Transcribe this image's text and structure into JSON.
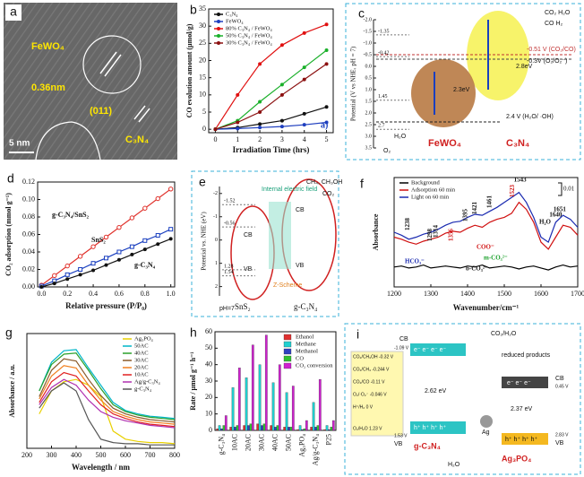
{
  "chart_data": [
    {
      "panel": "b",
      "type": "line",
      "x": [
        0,
        1,
        2,
        3,
        4,
        5
      ],
      "xlim": [
        -0.3,
        5.3
      ],
      "xticks": [
        0,
        1,
        2,
        3,
        4,
        5
      ],
      "ylim": [
        -1,
        35
      ],
      "yticks": [
        0,
        5,
        10,
        15,
        20,
        25,
        30,
        35
      ],
      "xlabel": "Irradiation Time (hrs)",
      "ylabel": "CO evolution amount (μmol/g)",
      "annotation": "a)",
      "legend": "upper left",
      "grid": false,
      "series": [
        {
          "name": "C₃N₄",
          "color": "#111111",
          "marker": "circle",
          "values": [
            0,
            0.5,
            1.5,
            2.5,
            4.5,
            6.5
          ]
        },
        {
          "name": "FeWO₄",
          "color": "#1f3fbf",
          "marker": "circle",
          "values": [
            0,
            0.2,
            0.5,
            0.8,
            1.3,
            2
          ]
        },
        {
          "name": "80% C₃N₄ / FeWO₄",
          "color": "#e01010",
          "marker": "circle",
          "values": [
            0,
            10,
            19,
            24.5,
            28,
            30.5
          ]
        },
        {
          "name": "50% C₃N₄ / FeWO₄",
          "color": "#1ab02a",
          "marker": "circle",
          "values": [
            0,
            2.5,
            8,
            13,
            18,
            23
          ]
        },
        {
          "name": "30% C₃N₄ / FeWO₄",
          "color": "#8b1010",
          "marker": "circle",
          "values": [
            0,
            2,
            5,
            10,
            14.5,
            19
          ]
        }
      ]
    },
    {
      "panel": "d",
      "type": "line",
      "x": [
        0,
        0.1,
        0.2,
        0.3,
        0.4,
        0.5,
        0.6,
        0.7,
        0.8,
        0.9,
        1
      ],
      "xlim": [
        -0.03,
        1.03
      ],
      "xticks": [
        {
          "value": 0,
          "label": "0.0"
        },
        0.2,
        0.4,
        0.6,
        0.8,
        {
          "value": 1,
          "label": "1.0"
        }
      ],
      "ylim": [
        0,
        0.12
      ],
      "yticks": [
        {
          "value": 0,
          "label": "0.00"
        },
        0.02,
        0.04,
        0.06,
        0.08,
        {
          "value": 0.1,
          "label": "0.10"
        },
        0.12
      ],
      "xlabel": "Relative pressure (P/P₀)",
      "ylabel": "CO₂ adsorption (mmol g⁻¹)",
      "legend": "inline",
      "grid": false,
      "series": [
        {
          "name": "g-C₃N₄/SnS₂",
          "color": "#e0302a",
          "marker": "open-circle",
          "values": [
            0.002,
            0.013,
            0.024,
            0.035,
            0.046,
            0.057,
            0.068,
            0.079,
            0.09,
            0.101,
            0.112
          ]
        },
        {
          "name": "SnS₂",
          "color": "#1a3fbf",
          "marker": "open-square",
          "values": [
            0.001,
            0.007,
            0.014,
            0.02,
            0.027,
            0.033,
            0.04,
            0.046,
            0.053,
            0.059,
            0.066
          ]
        },
        {
          "name": "g-C₃N₄",
          "color": "#111111",
          "marker": "circle",
          "values": [
            0,
            0.004,
            0.009,
            0.014,
            0.019,
            0.025,
            0.031,
            0.037,
            0.043,
            0.049,
            0.055
          ]
        }
      ]
    },
    {
      "panel": "f",
      "type": "line",
      "x": [
        1200,
        1220,
        1240,
        1260,
        1280,
        1300,
        1320,
        1340,
        1360,
        1380,
        1400,
        1420,
        1440,
        1460,
        1480,
        1500,
        1520,
        1540,
        1560,
        1580,
        1600,
        1620,
        1640,
        1660,
        1680,
        1700
      ],
      "xlim": [
        1200,
        1700
      ],
      "xticks": [
        1200,
        1300,
        1400,
        1500,
        1600,
        1700
      ],
      "ylim": [
        0,
        11
      ],
      "xlabel": "Wavenumber/cm⁻¹",
      "ylabel": "Absorbance",
      "legend": "upper left",
      "grid": false,
      "scale_label": "0.01",
      "peaks": [
        1238,
        1298,
        1314,
        1356,
        1395,
        1421,
        1461,
        1523,
        1543,
        1640,
        1651
      ],
      "peak_colors": [
        "#111111",
        "#111111",
        "#111111",
        "#d01010",
        "#111111",
        "#111111",
        "#111111",
        "#d01010",
        "#111111",
        "#111111",
        "#111111"
      ],
      "annotations": [
        "HCO₃⁻",
        "COO⁻",
        "m-CO₃²⁻",
        "b-CO₃²⁻",
        "H₂O"
      ],
      "series": [
        {
          "name": "Background",
          "color": "#000000",
          "marker": "none",
          "values": [
            2.0,
            2.1,
            1.9,
            2.0,
            2.2,
            1.9,
            2.0,
            2.1,
            2.0,
            1.9,
            2.1,
            2.0,
            2.2,
            1.9,
            2.0,
            2.1,
            2.0,
            1.8,
            2.0,
            2.1,
            1.9,
            1.7,
            2.0,
            2.2,
            2.0,
            2.1
          ]
        },
        {
          "name": "Adsorption 60 min",
          "color": "#d01010",
          "marker": "none",
          "values": [
            5.0,
            4.8,
            4.5,
            4.3,
            4.6,
            4.8,
            5.0,
            5.4,
            5.6,
            5.5,
            5.9,
            6.2,
            6.0,
            6.5,
            6.8,
            7.0,
            7.4,
            8.5,
            7.8,
            6.5,
            4.5,
            3.8,
            5.0,
            6.2,
            6.0,
            5.2
          ]
        },
        {
          "name": "Light on 60 min",
          "color": "#1a2ab0",
          "marker": "none",
          "values": [
            5.5,
            5.2,
            4.8,
            5.0,
            5.3,
            5.5,
            5.8,
            6.2,
            6.5,
            6.6,
            7.0,
            7.3,
            7.2,
            7.6,
            8.0,
            8.5,
            9.0,
            9.5,
            8.5,
            7.0,
            5.0,
            4.5,
            6.5,
            7.2,
            6.8,
            6.0
          ]
        }
      ]
    },
    {
      "panel": "g",
      "type": "line",
      "x": [
        250,
        300,
        350,
        400,
        450,
        500,
        550,
        600,
        650,
        700,
        750,
        800
      ],
      "xlim": [
        200,
        800
      ],
      "xticks": [
        200,
        300,
        400,
        500,
        600,
        700,
        800
      ],
      "ylim": [
        0,
        10
      ],
      "xlabel": "Wavelength / nm",
      "ylabel": "Absorbance / a.u.",
      "legend": "upper right",
      "grid": false,
      "series": [
        {
          "name": "Ag₃PO₄",
          "color": "#e8d000",
          "marker": "none",
          "values": [
            3,
            5,
            5.8,
            6,
            5.5,
            4.5,
            1.5,
            0.8,
            0.6,
            0.5,
            0.5,
            0.4
          ]
        },
        {
          "name": "50AC",
          "color": "#00b5c8",
          "marker": "none",
          "values": [
            5,
            7.5,
            8.5,
            8.6,
            7,
            5.5,
            4,
            3.3,
            3,
            2.8,
            2.7,
            2.6
          ]
        },
        {
          "name": "40AC",
          "color": "#2aa02a",
          "marker": "none",
          "values": [
            5,
            7.3,
            8.2,
            8.3,
            6.8,
            5.2,
            3.8,
            3.2,
            2.9,
            2.7,
            2.6,
            2.5
          ]
        },
        {
          "name": "30AC",
          "color": "#8a5a2a",
          "marker": "none",
          "values": [
            4.5,
            6.8,
            7.8,
            7.6,
            6,
            4.6,
            3.5,
            3,
            2.7,
            2.5,
            2.4,
            2.3
          ]
        },
        {
          "name": "20AC",
          "color": "#f08020",
          "marker": "none",
          "values": [
            4.3,
            6.3,
            7.2,
            7.0,
            5.5,
            4.2,
            3.2,
            2.8,
            2.5,
            2.3,
            2.2,
            2.1
          ]
        },
        {
          "name": "10AC",
          "color": "#e02020",
          "marker": "none",
          "values": [
            4,
            5.8,
            6.6,
            6.3,
            5,
            3.8,
            3,
            2.6,
            2.3,
            2.1,
            2,
            1.9
          ]
        },
        {
          "name": "Ag/g-C₃N₄",
          "color": "#b030b0",
          "marker": "none",
          "values": [
            3.8,
            5.3,
            6,
            5.5,
            4.2,
            3.2,
            2.7,
            2.4,
            2.2,
            2,
            1.9,
            1.8
          ]
        },
        {
          "name": "g-C₃N₄",
          "color": "#555555",
          "marker": "none",
          "values": [
            3.5,
            5,
            5.7,
            5,
            2.5,
            0.8,
            0.5,
            0.4,
            0.4,
            0.3,
            0.3,
            0.3
          ]
        }
      ]
    },
    {
      "panel": "h",
      "type": "bar",
      "categories": [
        "g-C₃N₄",
        "10AC",
        "20AC",
        "30AC",
        "40AC",
        "50AC",
        "Ag₃PO₄",
        "Ag/g-C₃N₄",
        "P25"
      ],
      "ylim": [
        0,
        60
      ],
      "yticks": [
        0,
        10,
        20,
        30,
        40,
        50,
        60
      ],
      "ylabel": "Rate / μmol g⁻¹ h⁻¹",
      "legend": "upper right",
      "grid": false,
      "series": [
        {
          "name": "Ethanol",
          "color": "#e03030",
          "values": [
            1,
            2,
            3,
            4,
            3,
            2,
            0.5,
            2,
            0.5
          ]
        },
        {
          "name": "Methane",
          "color": "#20d0d0",
          "values": [
            3,
            26,
            32,
            40,
            29,
            23,
            3,
            17,
            3
          ]
        },
        {
          "name": "Methanol",
          "color": "#3040c0",
          "values": [
            1,
            2,
            3,
            3,
            2,
            2,
            0.5,
            2,
            0.5
          ]
        },
        {
          "name": "CO",
          "color": "#30c030",
          "values": [
            3,
            3,
            4,
            4,
            3,
            2,
            1,
            3,
            2
          ]
        },
        {
          "name": "CO₂ conversion",
          "color": "#d020d0",
          "values": [
            9,
            38,
            52,
            58,
            40,
            27,
            6,
            31,
            6
          ]
        }
      ]
    }
  ],
  "diagrams": {
    "a": {
      "letter": "a",
      "labels": [
        "FeWO₄",
        "0.36nm",
        "(011)",
        "C₃N₄",
        "5 nm"
      ]
    },
    "c": {
      "letter": "c",
      "axis_label": "Potential (V vs NHE, pH = 7)",
      "ylim": [
        -2,
        3.5
      ],
      "yticks": [
        {
          "value": -2,
          "label": "-2.0"
        },
        -1.5,
        {
          "value": -1,
          "label": "-1.0"
        },
        -0.5,
        {
          "value": 0,
          "label": "0.0"
        },
        0.5,
        {
          "value": 1,
          "label": "1.0"
        },
        1.5,
        {
          "value": 2,
          "label": "2.0"
        },
        2.5,
        {
          "value": 3,
          "label": "3.0"
        },
        3.5
      ],
      "levels": [
        -1.35,
        -0.42,
        1.45,
        2.7
      ],
      "labels": [
        "-0.51 V (CO₂/CO)",
        "-0.3V (O₂/O₂⁻)",
        "2.4 V (H₂O/ ·OH)",
        "2.8eV",
        "2.3eV",
        "FeWO₄",
        "C₃N₄",
        "CO₂ H₂O",
        "CO H₂",
        "H₂O",
        "O₂"
      ]
    },
    "e": {
      "letter": "e",
      "axis_label": "Potential vs. NHE (eV)",
      "ylim": [
        -2.3,
        2.4
      ],
      "yticks": [
        -2,
        -1,
        0,
        1,
        2
      ],
      "levels": [
        -1.52,
        -0.56,
        1.28,
        1.54
      ],
      "labels": [
        "pH=7",
        "CB",
        "VB",
        "CB",
        "VB",
        "SnS₂",
        "g-C₃N₄",
        "Internal electric field",
        "Z-Scheme",
        "CH₄, CH₃OH",
        "CO₂"
      ]
    },
    "i": {
      "letter": "i",
      "labels": [
        "CO₂/CH₃OH -0.32 V",
        "CO₂/CH₄ -0.244 V",
        "CO₂/CO -0.11 V",
        "O₂/·O₂⁻ -0.046 V",
        "H⁺/H₂ 0 V",
        "O₂/H₂O 1.23 V",
        "CB",
        "-1.09 V",
        "2.62 eV",
        "VB",
        "1.53 V",
        "g-C₃N₄",
        "Ag",
        "2.37 eV",
        "CB",
        "0.45 V",
        "VB",
        "2.83 V",
        "Ag₃PO₄",
        "CO₂/H₂O",
        "reduced products",
        "H₂O",
        "e⁻ e⁻ e⁻ e⁻",
        "h⁺ h⁺ h⁺ h⁺",
        "e⁻ e⁻ e⁻",
        "h⁺ h⁺ h⁺ h⁺"
      ]
    }
  }
}
